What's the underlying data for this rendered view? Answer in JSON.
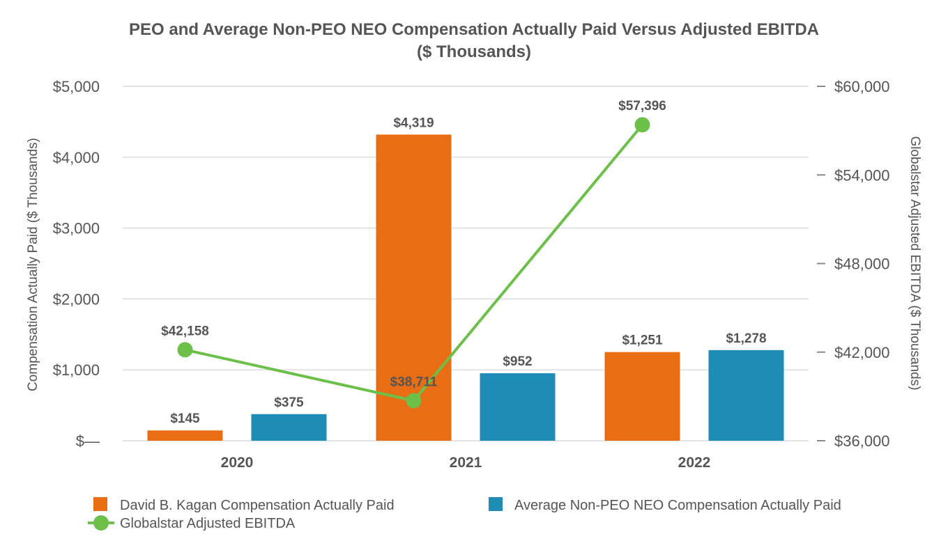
{
  "chart_data": {
    "type": "bar",
    "title": "PEO and Average Non-PEO NEO Compensation Actually Paid Versus Adjusted EBITDA",
    "subtitle": "($ Thousands)",
    "categories": [
      "2020",
      "2021",
      "2022"
    ],
    "series": [
      {
        "name": "David B. Kagan Compensation Actually Paid",
        "type": "bar",
        "axis": "left",
        "color": "#e96d14",
        "values": [
          145,
          4319,
          1251
        ],
        "labels": [
          "$145",
          "$4,319",
          "$1,251"
        ]
      },
      {
        "name": "Average Non-PEO NEO Compensation Actually Paid",
        "type": "bar",
        "axis": "left",
        "color": "#1f8bb7",
        "values": [
          375,
          952,
          1278
        ],
        "labels": [
          "$375",
          "$952",
          "$1,278"
        ]
      },
      {
        "name": "Globalstar Adjusted EBITDA",
        "type": "line",
        "axis": "right",
        "color": "#6cc04a",
        "values": [
          42158,
          38711,
          57396
        ],
        "labels": [
          "$42,158",
          "$38,711",
          "$57,396"
        ]
      }
    ],
    "y_left": {
      "label": "Compensation Actually Paid ($ Thousands)",
      "range": [
        0,
        5000
      ],
      "ticks": [
        0,
        1000,
        2000,
        3000,
        4000,
        5000
      ],
      "tick_labels": [
        "$—",
        "$1,000",
        "$2,000",
        "$3,000",
        "$4,000",
        "$5,000"
      ]
    },
    "y_right": {
      "label": "Globalstar Adjusted EBITDA ($ Thousands)",
      "range": [
        36000,
        60000
      ],
      "ticks": [
        36000,
        42000,
        48000,
        54000,
        60000
      ],
      "tick_labels": [
        "$36,000",
        "$42,000",
        "$48,000",
        "$54,000",
        "$60,000"
      ]
    },
    "grid": true,
    "legend_position": "bottom"
  }
}
